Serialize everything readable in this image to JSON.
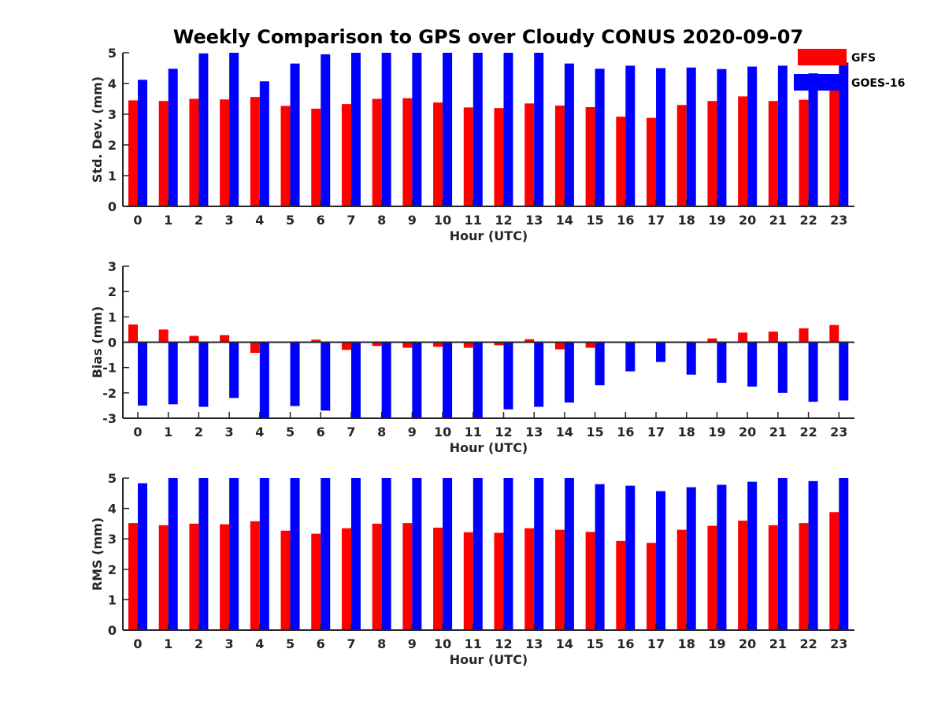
{
  "chart_data": {
    "title": "Weekly Comparison to GPS over Cloudy CONUS 2020-09-07",
    "type": "bar",
    "legend": {
      "placement": "top-right",
      "entries": [
        {
          "name": "GFS",
          "color": "#ff0000"
        },
        {
          "name": "GOES-16",
          "color": "#0000ff"
        }
      ]
    },
    "categories": [
      "0",
      "1",
      "2",
      "3",
      "4",
      "5",
      "6",
      "7",
      "8",
      "9",
      "10",
      "11",
      "12",
      "13",
      "14",
      "15",
      "16",
      "17",
      "18",
      "19",
      "20",
      "21",
      "22",
      "23"
    ],
    "panels": [
      {
        "xlabel": "Hour (UTC)",
        "ylabel": "Std. Dev. (mm)",
        "ylim": [
          0,
          5
        ],
        "yticks": [
          0,
          1,
          2,
          3,
          4,
          5
        ],
        "series": [
          {
            "name": "GFS",
            "color": "#ff0000",
            "values": [
              3.45,
              3.43,
              3.5,
              3.48,
              3.56,
              3.27,
              3.18,
              3.33,
              3.5,
              3.52,
              3.38,
              3.22,
              3.2,
              3.35,
              3.28,
              3.23,
              2.92,
              2.88,
              3.3,
              3.43,
              3.58,
              3.43,
              3.47,
              3.85
            ]
          },
          {
            "name": "GOES-16",
            "color": "#0000ff",
            "values": [
              4.12,
              4.48,
              4.98,
              5.0,
              4.07,
              4.65,
              4.95,
              5.0,
              5.0,
              5.0,
              5.0,
              5.0,
              5.0,
              5.0,
              4.65,
              4.48,
              4.58,
              4.5,
              4.52,
              4.47,
              4.55,
              4.58,
              4.33,
              4.68
            ]
          }
        ]
      },
      {
        "xlabel": "Hour (UTC)",
        "ylabel": "Bias (mm)",
        "ylim": [
          -3,
          3
        ],
        "yticks": [
          -3,
          -2,
          -1,
          0,
          1,
          2,
          3
        ],
        "series": [
          {
            "name": "GFS",
            "color": "#ff0000",
            "values": [
              0.7,
              0.5,
              0.25,
              0.28,
              -0.42,
              0.0,
              0.1,
              -0.3,
              -0.15,
              -0.22,
              -0.18,
              -0.22,
              -0.12,
              0.12,
              -0.28,
              -0.22,
              0.02,
              0.02,
              0.02,
              0.15,
              0.38,
              0.42,
              0.55,
              0.68
            ]
          },
          {
            "name": "GOES-16",
            "color": "#0000ff",
            "values": [
              -2.5,
              -2.45,
              -2.55,
              -2.2,
              -3.0,
              -2.52,
              -2.7,
              -3.0,
              -3.0,
              -3.0,
              -3.0,
              -3.0,
              -2.65,
              -2.55,
              -2.38,
              -1.7,
              -1.15,
              -0.78,
              -1.28,
              -1.6,
              -1.75,
              -2.0,
              -2.35,
              -2.3
            ]
          }
        ]
      },
      {
        "xlabel": "Hour (UTC)",
        "ylabel": "RMS (mm)",
        "ylim": [
          0,
          5
        ],
        "yticks": [
          0,
          1,
          2,
          3,
          4,
          5
        ],
        "series": [
          {
            "name": "GFS",
            "color": "#ff0000",
            "values": [
              3.52,
              3.45,
              3.5,
              3.48,
              3.58,
              3.27,
              3.17,
              3.35,
              3.5,
              3.52,
              3.37,
              3.22,
              3.2,
              3.35,
              3.3,
              3.23,
              2.93,
              2.87,
              3.3,
              3.43,
              3.6,
              3.45,
              3.52,
              3.88
            ]
          },
          {
            "name": "GOES-16",
            "color": "#0000ff",
            "values": [
              4.83,
              5.0,
              5.0,
              5.0,
              5.0,
              5.0,
              5.0,
              5.0,
              5.0,
              5.0,
              5.0,
              5.0,
              5.0,
              5.0,
              5.0,
              4.8,
              4.75,
              4.57,
              4.7,
              4.78,
              4.88,
              5.0,
              4.9,
              5.0
            ]
          }
        ]
      }
    ]
  }
}
